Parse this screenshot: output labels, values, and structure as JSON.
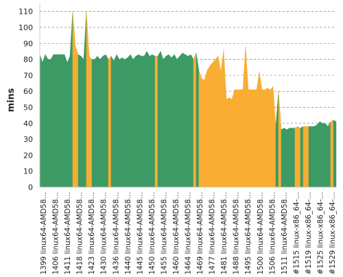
{
  "chart_data": {
    "type": "area",
    "title": "",
    "xlabel": "",
    "ylabel": "mins",
    "ylim": [
      0,
      115
    ],
    "yticks": [
      0,
      10,
      20,
      30,
      40,
      50,
      60,
      70,
      80,
      90,
      100,
      110
    ],
    "grid": "horizontal-dashed",
    "legend": "none",
    "colors": {
      "pass": "#3d9a64",
      "fail": "#f9ad32",
      "grid": "#666666",
      "axis": "#cccccc"
    },
    "tick_labels": [
      "#1399 linux64-AMD58…",
      "#1406 linux64-AMD58…",
      "#1411 linux64-AMD58…",
      "#1418 linux64-AMD58…",
      "#1423 linux64-AMD58…",
      "#1430 linux64-AMD58…",
      "#1436 linux64-AMD58…",
      "#1440 linux64-AMD58…",
      "#1445 linux64-AMD58…",
      "#1450 linux64-AMD58…",
      "#1455 linux64-AMD58…",
      "#1460 linux64-AMD58…",
      "#1464 linux64-AMD58…",
      "#1469 linux64-AMD58…",
      "#1477 linux64-AMD58…",
      "#1481 linux64-AMD58…",
      "#1488 linux64-AMD58…",
      "#1495 linux64-AMD58…",
      "#1500 linux64-AMD58…",
      "#1506 linux64-AMD58…",
      "#1511 linux64-AMD58…",
      "#1515 linux-x86_64-…",
      "#1519 linux-x86_64-…",
      "#1525 linux-x86_64-…",
      "#1529 linux-x86_64-…"
    ],
    "values": [
      83,
      78,
      83,
      80,
      80,
      83,
      83,
      83,
      83,
      83,
      78,
      82,
      110,
      88,
      83,
      82,
      80,
      110,
      82,
      80,
      80,
      82,
      80,
      82,
      83,
      80,
      82,
      79,
      83,
      80,
      81,
      80,
      81,
      83,
      80,
      82,
      83,
      82,
      82,
      85,
      82,
      83,
      82,
      82,
      85,
      80,
      82,
      83,
      81,
      83,
      80,
      82,
      84,
      83,
      82,
      83,
      80,
      84,
      73,
      68,
      67,
      73,
      76,
      78,
      80,
      82,
      72,
      86,
      55,
      56,
      55,
      61,
      61,
      61,
      61,
      88,
      61,
      61,
      61,
      61,
      72,
      61,
      61,
      62,
      61,
      63,
      38,
      60,
      36,
      37,
      36,
      37,
      37,
      37,
      38,
      37,
      38,
      38,
      38,
      38,
      38,
      39,
      41,
      40,
      40,
      38,
      41,
      42,
      41
    ],
    "status": [
      "P",
      "P",
      "P",
      "P",
      "P",
      "P",
      "P",
      "P",
      "P",
      "P",
      "P",
      "P",
      "F",
      "F",
      "P",
      "P",
      "P",
      "F",
      "F",
      "P",
      "P",
      "P",
      "P",
      "P",
      "P",
      "F",
      "P",
      "P",
      "P",
      "P",
      "P",
      "P",
      "P",
      "P",
      "P",
      "P",
      "P",
      "P",
      "P",
      "P",
      "P",
      "P",
      "F",
      "P",
      "P",
      "P",
      "P",
      "P",
      "P",
      "P",
      "P",
      "P",
      "P",
      "P",
      "P",
      "P",
      "F",
      "P",
      "F",
      "F",
      "F",
      "F",
      "F",
      "F",
      "F",
      "F",
      "F",
      "F",
      "F",
      "F",
      "F",
      "F",
      "F",
      "F",
      "F",
      "F",
      "F",
      "F",
      "F",
      "F",
      "F",
      "F",
      "F",
      "F",
      "F",
      "F",
      "P",
      "F",
      "P",
      "P",
      "P",
      "P",
      "P",
      "F",
      "F",
      "P",
      "F",
      "F",
      "P",
      "P",
      "P",
      "P",
      "P",
      "P",
      "P",
      "P",
      "F",
      "P",
      "P"
    ]
  }
}
